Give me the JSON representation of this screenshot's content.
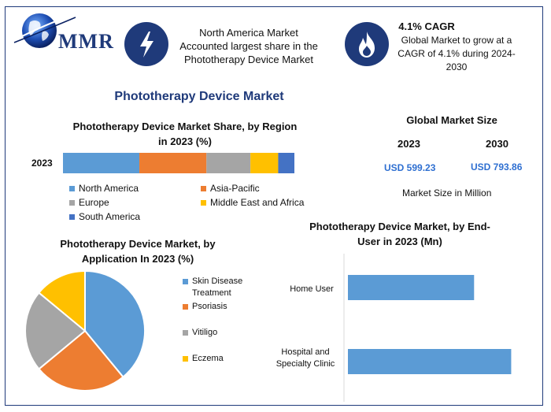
{
  "brand": {
    "logo_text": "MMR"
  },
  "header": {
    "stat1_text": [
      "North America Market",
      "Accounted largest share in the",
      "Phototherapy Device Market"
    ],
    "stat2_title": "4.1% CAGR",
    "stat2_text": [
      "Global Market to grow at a",
      "CAGR of 4.1% during 2024-",
      "2030"
    ],
    "icon1": "lightning-icon",
    "icon2": "flame-icon"
  },
  "main_title": "Phototherapy Device Market",
  "market_size": {
    "title": "Global Market Size",
    "year1": "2023",
    "year2": "2030",
    "value1": "USD 599.23",
    "value2": "USD 793.86",
    "note": "Market Size in Million"
  },
  "colors": {
    "blue": "#5b9bd5",
    "orange": "#ed7d31",
    "gray": "#a5a5a5",
    "yellow": "#ffc000",
    "darkblue": "#4472c4",
    "accent": "#1f3a7a"
  },
  "chart_data": [
    {
      "type": "bar",
      "orientation": "horizontal-stacked",
      "title": [
        "Phototherapy Device Market Share, by Region",
        "in 2023 (%)"
      ],
      "categories": [
        "2023"
      ],
      "series": [
        {
          "name": "North America",
          "values": [
            33
          ],
          "color": "#5b9bd5"
        },
        {
          "name": "Asia-Pacific",
          "values": [
            29
          ],
          "color": "#ed7d31"
        },
        {
          "name": "Europe",
          "values": [
            19
          ],
          "color": "#a5a5a5"
        },
        {
          "name": "Middle East and Africa",
          "values": [
            12
          ],
          "color": "#ffc000"
        },
        {
          "name": "South America",
          "values": [
            7
          ],
          "color": "#4472c4"
        }
      ],
      "legend": "bottom"
    },
    {
      "type": "pie",
      "title": [
        "Phototherapy Device Market, by",
        "Application In 2023 (%)"
      ],
      "slices": [
        {
          "name": "Skin Disease Treatment",
          "value": 39,
          "color": "#5b9bd5"
        },
        {
          "name": "Psoriasis",
          "value": 25,
          "color": "#ed7d31"
        },
        {
          "name": "Vitiligo",
          "value": 22,
          "color": "#a5a5a5"
        },
        {
          "name": "Eczema",
          "value": 14,
          "color": "#ffc000"
        }
      ],
      "legend_labels": [
        [
          "Skin Disease",
          "Treatment"
        ],
        [
          "Psoriasis"
        ],
        [
          "Vitiligo"
        ],
        [
          "Eczema"
        ]
      ],
      "legend": "right"
    },
    {
      "type": "bar",
      "orientation": "horizontal",
      "title": [
        "Phototherapy Device Market, by End-",
        "User in 2023 (Mn)"
      ],
      "categories": [
        "Home User",
        "Hospital and Specialty Clinic"
      ],
      "category_labels": [
        [
          "Home User"
        ],
        [
          "Hospital and",
          "Specialty Clinic"
        ]
      ],
      "values": [
        255,
        330
      ],
      "xlim": [
        0,
        350
      ],
      "color": "#5b9bd5"
    }
  ]
}
